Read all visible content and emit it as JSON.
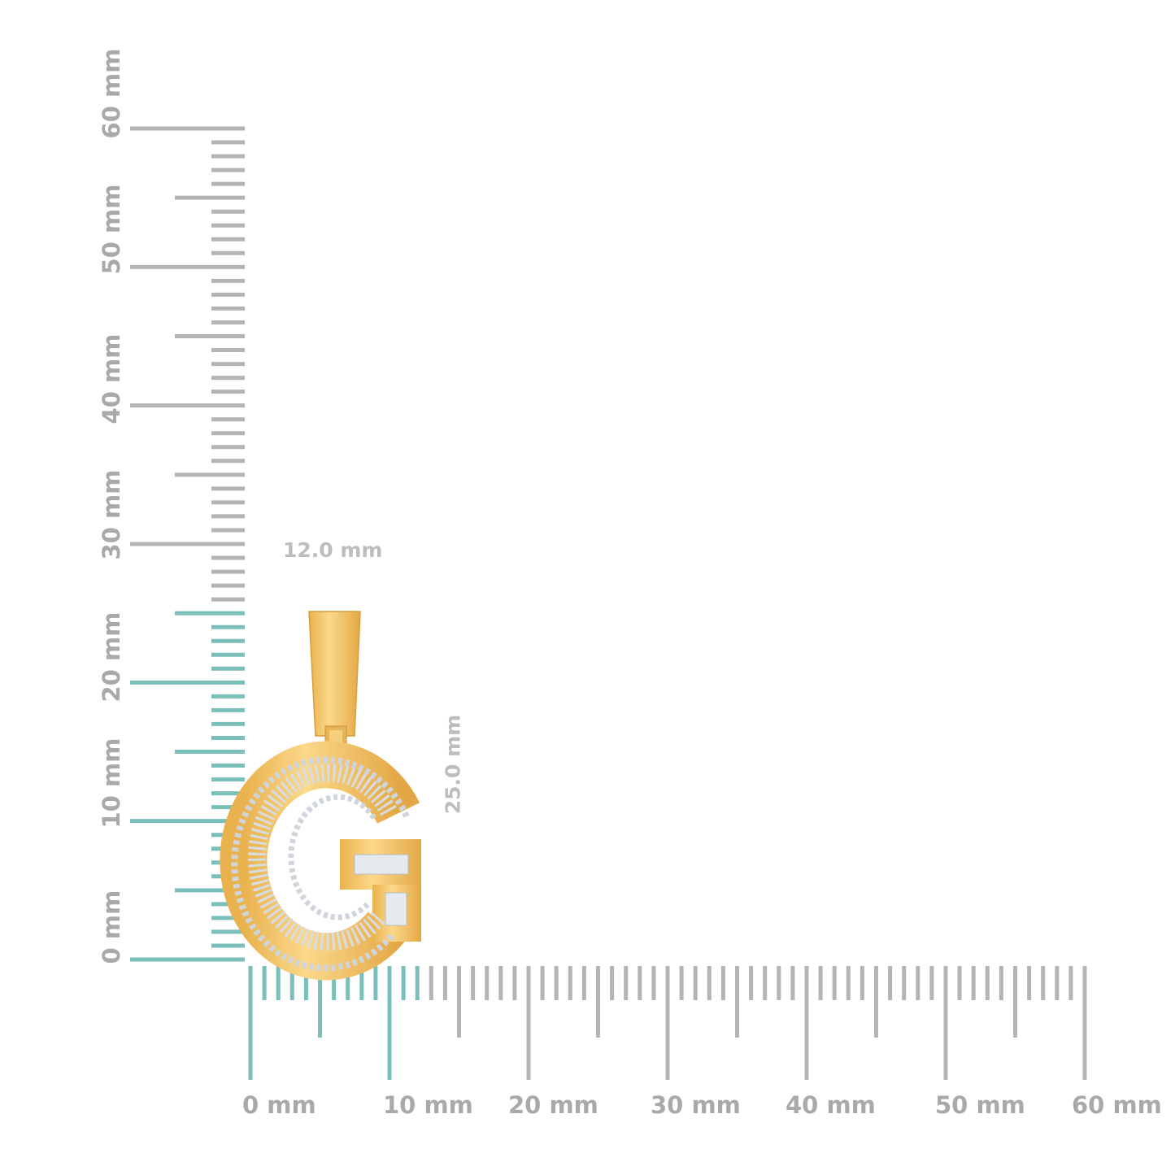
{
  "colors": {
    "highlight": "#7bbfbb",
    "ruler": "#b4b4b4",
    "label": "#a9a9a9",
    "gold": "#f0c266",
    "stone": "#dfe3e8"
  },
  "vertical_ruler": {
    "unit": "mm",
    "range_mm": [
      0,
      60
    ],
    "highlight_to_mm": 25,
    "labels": [
      "0 mm",
      "10 mm",
      "20 mm",
      "30 mm",
      "40 mm",
      "50 mm",
      "60 mm"
    ]
  },
  "horizontal_ruler": {
    "unit": "mm",
    "range_mm": [
      0,
      60
    ],
    "highlight_to_mm": 12,
    "labels": [
      "0 mm",
      "10 mm",
      "20 mm",
      "30 mm",
      "40 mm",
      "50 mm",
      "60 mm"
    ]
  },
  "dimensions": {
    "width": "12.0 mm",
    "height": "25.0 mm"
  },
  "product": {
    "type": "letter G pendant",
    "metal": "yellow gold",
    "stones": "baguette and round diamonds"
  }
}
